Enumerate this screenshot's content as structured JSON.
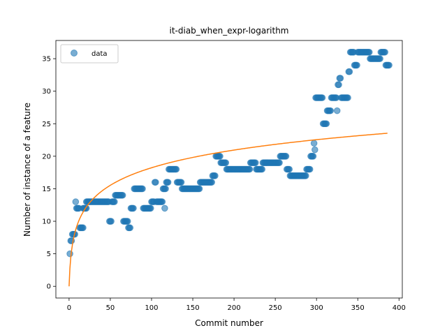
{
  "chart_data": {
    "type": "scatter",
    "title": "it-diab_when_expr-logarithm",
    "xlabel": "Commit number",
    "ylabel": "Number of instance of a feature",
    "xlim": [
      -16,
      404
    ],
    "ylim": [
      -1.8,
      37.8
    ],
    "xticks": [
      0,
      50,
      100,
      150,
      200,
      250,
      300,
      350,
      400
    ],
    "yticks": [
      0,
      5,
      10,
      15,
      20,
      25,
      30,
      35
    ],
    "legend": {
      "position": "top-left",
      "entries": [
        "data"
      ]
    },
    "colors": {
      "data": "#1f77b4",
      "fit": "#ff7f0e"
    },
    "series": [
      {
        "name": "data",
        "kind": "scatter",
        "runs": [
          [
            1,
            1,
            5
          ],
          [
            2,
            3,
            7
          ],
          [
            4,
            7,
            8
          ],
          [
            8,
            8,
            13
          ],
          [
            9,
            12,
            12
          ],
          [
            13,
            17,
            9
          ],
          [
            17,
            21,
            12
          ],
          [
            21,
            25,
            13
          ],
          [
            26,
            48,
            13
          ],
          [
            49,
            51,
            10
          ],
          [
            52,
            55,
            13
          ],
          [
            56,
            65,
            14
          ],
          [
            66,
            71,
            10
          ],
          [
            72,
            74,
            9
          ],
          [
            75,
            78,
            12
          ],
          [
            79,
            89,
            15
          ],
          [
            90,
            99,
            12
          ],
          [
            100,
            103,
            13
          ],
          [
            104,
            105,
            16
          ],
          [
            106,
            113,
            13
          ],
          [
            114,
            117,
            15
          ],
          [
            116,
            116,
            12
          ],
          [
            118,
            120,
            16
          ],
          [
            121,
            130,
            18
          ],
          [
            131,
            136,
            16
          ],
          [
            137,
            140,
            15
          ],
          [
            141,
            158,
            15
          ],
          [
            159,
            173,
            16
          ],
          [
            174,
            177,
            17
          ],
          [
            178,
            183,
            20
          ],
          [
            184,
            190,
            19
          ],
          [
            191,
            219,
            18
          ],
          [
            220,
            226,
            19
          ],
          [
            227,
            234,
            18
          ],
          [
            235,
            255,
            19
          ],
          [
            256,
            263,
            20
          ],
          [
            264,
            267,
            18
          ],
          [
            268,
            287,
            17
          ],
          [
            288,
            292,
            18
          ],
          [
            293,
            296,
            20
          ],
          [
            297,
            297,
            22
          ],
          [
            298,
            298,
            21
          ],
          [
            299,
            307,
            29
          ],
          [
            308,
            312,
            25
          ],
          [
            313,
            317,
            27
          ],
          [
            318,
            324,
            29
          ],
          [
            325,
            325,
            27
          ],
          [
            326,
            327,
            31
          ],
          [
            328,
            329,
            32
          ],
          [
            330,
            338,
            29
          ],
          [
            339,
            340,
            33
          ],
          [
            341,
            345,
            36
          ],
          [
            346,
            349,
            34
          ],
          [
            350,
            364,
            36
          ],
          [
            365,
            377,
            35
          ],
          [
            378,
            383,
            36
          ],
          [
            384,
            388,
            34
          ]
        ]
      },
      {
        "name": "",
        "kind": "line",
        "model": "a*log(x+1)",
        "coefficient": 3.95,
        "x_range": [
          0,
          386
        ]
      }
    ]
  }
}
